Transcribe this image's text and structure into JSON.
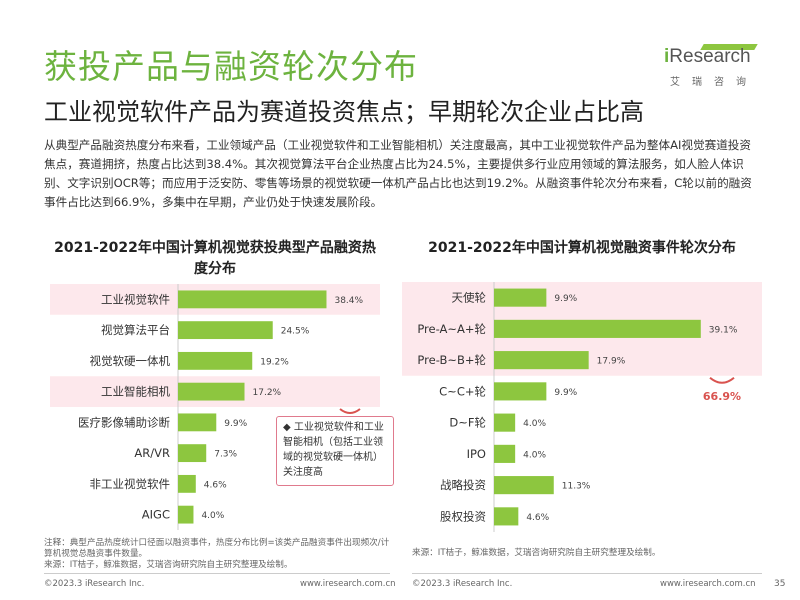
{
  "header": {
    "title": "获投产品与融资轮次分布",
    "subtitle": "工业视觉软件产品为赛道投资焦点；早期轮次企业占比高",
    "logo_brand_i": "i",
    "logo_brand_rest": "Research",
    "logo_cn": "艾瑞咨询"
  },
  "description": "从典型产品融资热度分布来看，工业领域产品（工业视觉软件和工业智能相机）关注度最高，其中工业视觉软件产品为整体AI视觉赛道投资焦点，赛道拥挤，热度占比达到38.4%。其次视觉算法平台企业热度占比为24.5%，主要提供多行业应用领域的算法服务，如人脸人体识别、文字识别OCR等；而应用于泛安防、零售等场景的视觉软硬一体机产品占比也达到19.2%。从融资事件轮次分布来看，C轮以前的融资事件占比达到66.9%，多集中在早期，产业仍处于快速发展阶段。",
  "colors": {
    "bar": "#8dc63f",
    "highlight_bg": "#fde8ec",
    "accent_red": "#d9534f",
    "title_green": "#6db33f"
  },
  "chart_data": [
    {
      "type": "bar",
      "orientation": "horizontal",
      "title": "2021-2022年中国计算机视觉获投典型产品融资热度分布",
      "categories": [
        "工业视觉软件",
        "视觉算法平台",
        "视觉软硬一体机",
        "工业智能相机",
        "医疗影像辅助诊断",
        "AR/VR",
        "非工业视觉软件",
        "AIGC"
      ],
      "values": [
        38.4,
        24.5,
        19.2,
        17.2,
        9.9,
        7.3,
        4.6,
        4.0
      ],
      "value_labels": [
        "38.4%",
        "24.5%",
        "19.2%",
        "17.2%",
        "9.9%",
        "7.3%",
        "4.6%",
        "4.0%"
      ],
      "highlighted_rows": [
        0,
        3
      ],
      "xlim": [
        0,
        45
      ],
      "annotation": "◆ 工业视觉软件和工业智能相机（包括工业领域的视觉软硬一体机）关注度高"
    },
    {
      "type": "bar",
      "orientation": "horizontal",
      "title": "2021-2022年中国计算机视觉融资事件轮次分布",
      "categories": [
        "天使轮",
        "Pre-A~A+轮",
        "Pre-B~B+轮",
        "C~C+轮",
        "D~F轮",
        "IPO",
        "战略投资",
        "股权投资"
      ],
      "values": [
        9.9,
        39.1,
        17.9,
        9.9,
        4.0,
        4.0,
        11.3,
        4.6
      ],
      "value_labels": [
        "9.9%",
        "39.1%",
        "17.9%",
        "9.9%",
        "4.0%",
        "4.0%",
        "11.3%",
        "4.6%"
      ],
      "highlighted_rows": [
        0,
        1,
        2
      ],
      "xlim": [
        0,
        45
      ],
      "annotation": "66.9%"
    }
  ],
  "notes": {
    "left": "注释：典型产品热度统计口径面以融资事件，热度分布比例=该类产品融资事件出现频次/计算机视觉总融资事件数量。\n来源：IT桔子，鲸准数据，艾瑞咨询研究院自主研究整理及绘制。",
    "right": "来源：IT桔子，鲸准数据，艾瑞咨询研究院自主研究整理及绘制。"
  },
  "footer": {
    "copyright": "©2023.3 iResearch Inc.",
    "site": "www.iresearch.com.cn",
    "page": "35"
  }
}
